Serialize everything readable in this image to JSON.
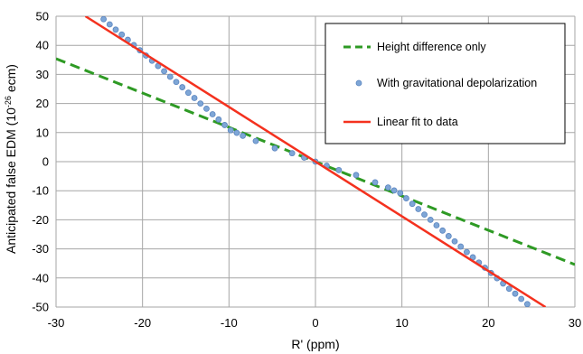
{
  "chart_data": {
    "type": "scatter",
    "xlabel": "R' (ppm)",
    "ylabel_main": "Anticipated false EDM (10",
    "ylabel_sup": "-26",
    "ylabel_tail": " ecm)",
    "xlim": [
      -30,
      30
    ],
    "ylim": [
      -50,
      50
    ],
    "x_ticks": [
      -30,
      -20,
      -10,
      0,
      10,
      20,
      30
    ],
    "y_ticks": [
      -50,
      -40,
      -30,
      -20,
      -10,
      0,
      10,
      20,
      30,
      40,
      50
    ],
    "x_tick_labels": [
      "-30",
      "-20",
      "-10",
      "0",
      "10",
      "20",
      "30"
    ],
    "y_tick_labels": [
      "-50",
      "-40",
      "-30",
      "-20",
      "-10",
      "0",
      "10",
      "20",
      "30",
      "40",
      "50"
    ],
    "grid": true,
    "legend_position": "top-right",
    "series": [
      {
        "name": "Height difference only",
        "style": "dashed-line",
        "color": "#2e9a24",
        "x": [
          -30,
          30
        ],
        "y": [
          35.4,
          -35.4
        ]
      },
      {
        "name": "With gravitational depolarization",
        "style": "markers",
        "color": "#7ea6d6",
        "x": [
          -24.5,
          -23.8,
          -23.1,
          -22.4,
          -21.7,
          -21.0,
          -20.3,
          -19.6,
          -18.9,
          -18.2,
          -17.5,
          -16.8,
          -16.1,
          -15.4,
          -14.7,
          -14.0,
          -13.3,
          -12.6,
          -11.9,
          -11.2,
          -10.5,
          -9.8,
          -9.1,
          -8.4,
          -6.9,
          -4.7,
          -2.7,
          -1.3,
          0.0,
          1.3,
          2.7,
          4.7,
          6.9,
          8.4,
          9.1,
          9.8,
          10.5,
          11.2,
          11.9,
          12.6,
          13.3,
          14.0,
          14.7,
          15.4,
          16.1,
          16.8,
          17.5,
          18.2,
          18.9,
          19.6,
          20.3,
          21.0,
          21.7,
          22.4,
          23.1,
          23.8,
          24.5
        ],
        "y": [
          49.0,
          47.2,
          45.4,
          43.7,
          41.9,
          40.1,
          38.3,
          36.5,
          34.7,
          32.9,
          31.1,
          29.2,
          27.4,
          25.6,
          23.7,
          21.9,
          20.0,
          18.2,
          16.3,
          14.5,
          12.6,
          10.8,
          9.9,
          8.9,
          7.1,
          4.6,
          2.9,
          1.4,
          0.0,
          -1.4,
          -2.9,
          -4.6,
          -7.1,
          -8.9,
          -9.9,
          -10.8,
          -12.6,
          -14.5,
          -16.3,
          -18.2,
          -20.0,
          -21.9,
          -23.7,
          -25.6,
          -27.4,
          -29.2,
          -31.1,
          -32.9,
          -34.7,
          -36.5,
          -38.3,
          -40.1,
          -41.9,
          -43.7,
          -45.4,
          -47.2,
          -49.0
        ]
      },
      {
        "name": "Linear fit to data",
        "style": "solid-line",
        "color": "#f4311e",
        "x": [
          -26.6,
          26.6
        ],
        "y": [
          50,
          -50
        ]
      }
    ]
  }
}
